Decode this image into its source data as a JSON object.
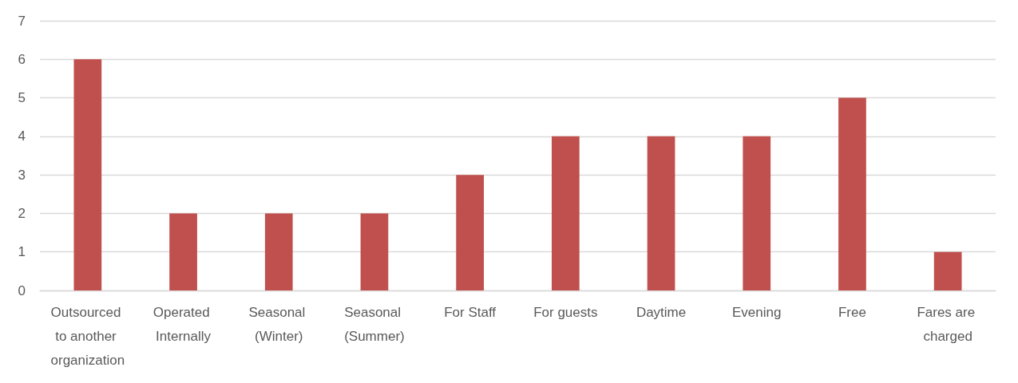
{
  "chart_data": {
    "type": "bar",
    "categories": [
      "Outsourced to another organization",
      "Operated Internally",
      "Seasonal (Winter)",
      "Seasonal (Summer)",
      "For Staff",
      "For guests",
      "Daytime",
      "Evening",
      "Free",
      "Fares are charged"
    ],
    "values": [
      6,
      2,
      2,
      2,
      3,
      4,
      4,
      4,
      5,
      1
    ],
    "color": "#c0504d",
    "ylim": [
      0,
      7
    ],
    "yticks": [
      0,
      1,
      2,
      3,
      4,
      5,
      6,
      7
    ],
    "grid": "y"
  }
}
